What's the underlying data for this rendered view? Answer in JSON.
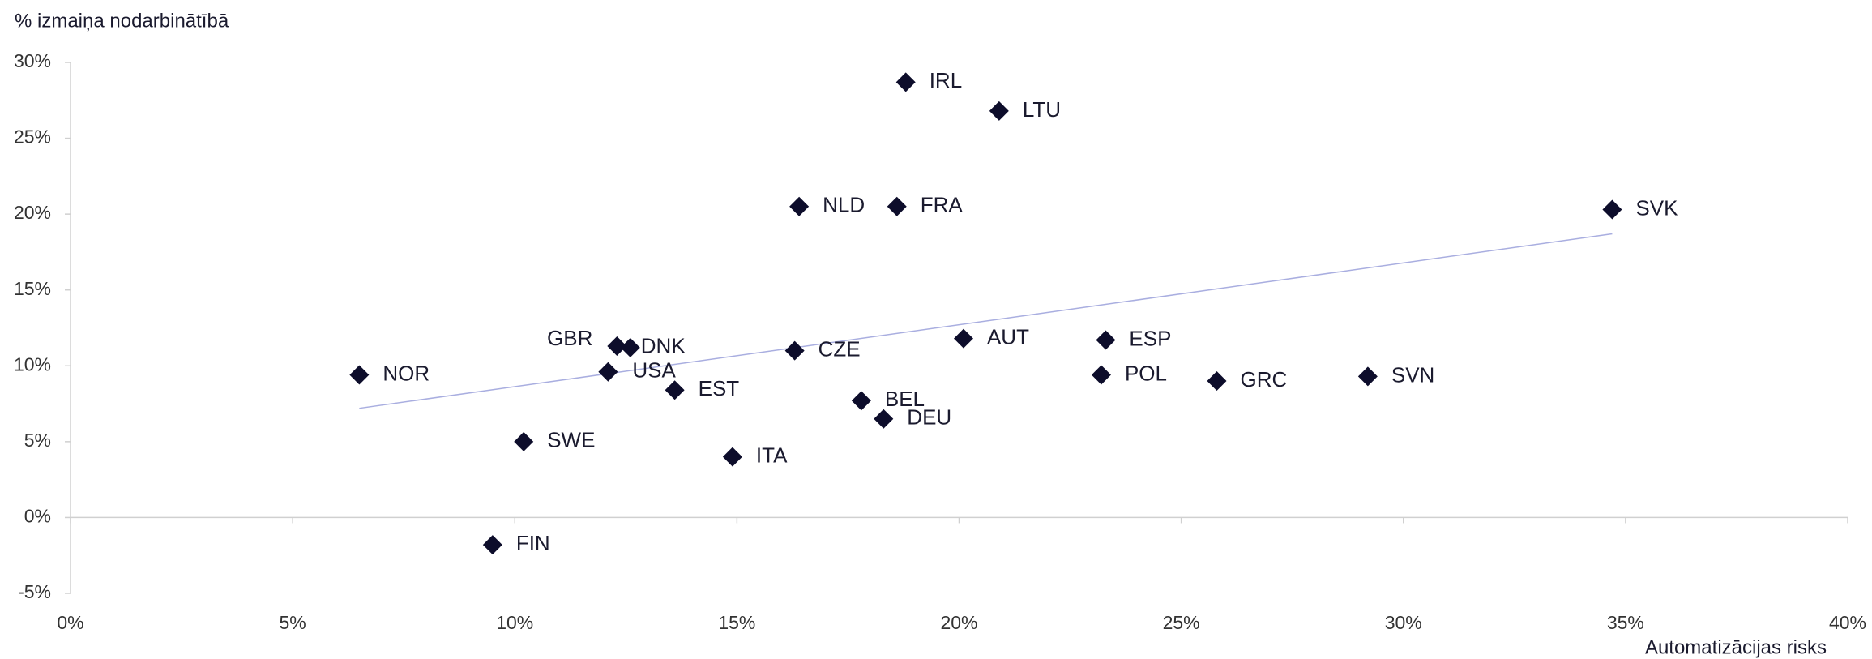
{
  "chart_data": {
    "type": "scatter",
    "y_label": "% izmaiņa nodarbinātībā",
    "x_label": "Automatizācijas risks",
    "color": "#0d0d2b",
    "trend_color": "#a9aee0",
    "labels": [
      "NOR",
      "FIN",
      "SWE",
      "GBR",
      "DNK",
      "USA",
      "EST",
      "ITA",
      "CZE",
      "NLD",
      "FRA",
      "IRL",
      "BEL",
      "DEU",
      "AUT",
      "LTU",
      "ESP",
      "POL",
      "GRC",
      "SVN",
      "SVK"
    ],
    "x": [
      6.5,
      9.5,
      10.2,
      12.3,
      12.6,
      12.1,
      13.6,
      14.9,
      16.3,
      16.4,
      18.6,
      18.8,
      17.8,
      18.3,
      20.1,
      20.9,
      23.3,
      23.2,
      25.8,
      29.2,
      34.7
    ],
    "values": [
      9.4,
      -1.8,
      5.0,
      11.3,
      11.2,
      9.6,
      8.4,
      4.0,
      11.0,
      20.5,
      20.5,
      28.7,
      7.7,
      6.5,
      11.8,
      26.8,
      11.7,
      9.4,
      9.0,
      9.3,
      20.3
    ],
    "trendline": {
      "x": [
        6.5,
        34.7
      ],
      "values": [
        7.2,
        18.7
      ]
    },
    "xlim": [
      0,
      40
    ],
    "ylim": [
      -5,
      30
    ],
    "xticks": [
      {
        "value": 0,
        "label": "0%"
      },
      {
        "value": 5,
        "label": "5%"
      },
      {
        "value": 10,
        "label": "10%"
      },
      {
        "value": 15,
        "label": "15%"
      },
      {
        "value": 20,
        "label": "20%"
      },
      {
        "value": 25,
        "label": "25%"
      },
      {
        "value": 30,
        "label": "30%"
      },
      {
        "value": 35,
        "label": "35%"
      },
      {
        "value": 40,
        "label": "40%"
      }
    ],
    "yticks": [
      {
        "value": -5,
        "label": "-5%"
      },
      {
        "value": 0,
        "label": "0%"
      },
      {
        "value": 5,
        "label": "5%"
      },
      {
        "value": 10,
        "label": "10%"
      },
      {
        "value": 15,
        "label": "15%"
      },
      {
        "value": 20,
        "label": "20%"
      },
      {
        "value": 25,
        "label": "25%"
      },
      {
        "value": 30,
        "label": "30%"
      }
    ]
  }
}
